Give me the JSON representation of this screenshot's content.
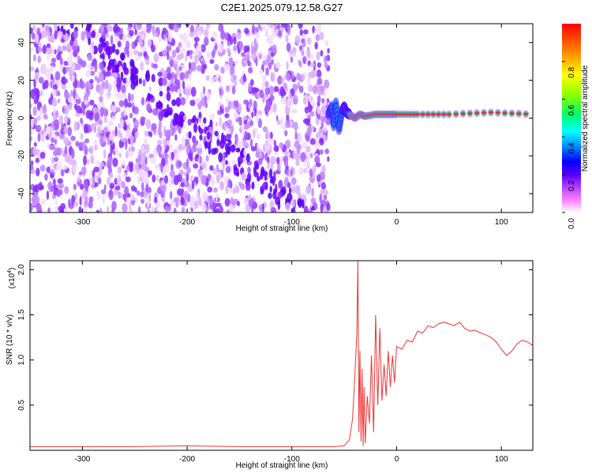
{
  "title": "C2E1.2025.079.12.58.G27",
  "chart_data": [
    {
      "type": "heatmap",
      "xlabel": "Height of straight line (km)",
      "ylabel": "Frequency (Hz)",
      "xlim": [
        -350,
        130
      ],
      "ylim": [
        -50,
        50
      ],
      "xticks": [
        -300,
        -200,
        -100,
        0,
        100
      ],
      "yticks": [
        -40,
        -20,
        0,
        20,
        40
      ],
      "noise_region_x": [
        -350,
        -65
      ],
      "signal_track": [
        [
          -65,
          2
        ],
        [
          -62,
          6
        ],
        [
          -60,
          -4
        ],
        [
          -58,
          8
        ],
        [
          -55,
          -6
        ],
        [
          -52,
          4
        ],
        [
          -50,
          6
        ],
        [
          -48,
          3
        ],
        [
          -45,
          2
        ],
        [
          -40,
          0
        ],
        [
          -35,
          2
        ],
        [
          -30,
          1
        ],
        [
          -20,
          2
        ],
        [
          -10,
          2
        ],
        [
          0,
          2
        ],
        [
          20,
          2
        ],
        [
          50,
          2
        ],
        [
          90,
          3
        ],
        [
          130,
          2
        ]
      ],
      "colorbar": {
        "label": "Normalized spectral amplitude",
        "range": [
          0,
          1
        ],
        "ticks": [
          "0.0",
          "0.2",
          "0.4",
          "0.6",
          "0.8"
        ]
      },
      "colors": [
        "#ffffff",
        "#ff66ff",
        "#aa44ff",
        "#3300ff",
        "#0000ff",
        "#0088ff",
        "#00ffff",
        "#00ff44",
        "#88ff00",
        "#ffff00",
        "#ff8800",
        "#ff0000"
      ]
    },
    {
      "type": "line",
      "xlabel": "Height of straight line (km)",
      "ylabel": "SNR (10 * v/v)",
      "scale_label": "(x10",
      "scale_exp": "4",
      "scale_close": ")",
      "xlim": [
        -350,
        130
      ],
      "ylim": [
        0,
        2.1
      ],
      "xticks": [
        -300,
        -200,
        -100,
        0,
        100
      ],
      "yticks": [
        "0.5",
        "1.0",
        "1.5",
        "2.0"
      ],
      "series": [
        {
          "color": "#ee3333",
          "x": [
            -350,
            -300,
            -250,
            -200,
            -150,
            -100,
            -60,
            -50,
            -45,
            -42,
            -40,
            -38,
            -37,
            -36,
            -35,
            -34,
            -33,
            -32,
            -31,
            -30,
            -28,
            -26,
            -24,
            -22,
            -20,
            -18,
            -16,
            -14,
            -12,
            -10,
            -8,
            -6,
            -4,
            -2,
            0,
            5,
            10,
            15,
            20,
            25,
            30,
            35,
            40,
            45,
            50,
            55,
            60,
            65,
            70,
            75,
            80,
            85,
            90,
            95,
            100,
            105,
            110,
            115,
            120,
            125,
            130
          ],
          "y": [
            0.04,
            0.04,
            0.04,
            0.05,
            0.04,
            0.04,
            0.04,
            0.05,
            0.12,
            0.35,
            0.8,
            1.3,
            2.1,
            0.2,
            1.1,
            0.1,
            0.9,
            0.05,
            0.7,
            0.08,
            0.6,
            0.3,
            1.05,
            0.2,
            1.5,
            0.5,
            1.35,
            0.55,
            0.95,
            0.6,
            1.1,
            0.7,
            1.05,
            0.75,
            1.15,
            1.12,
            1.22,
            1.2,
            1.32,
            1.3,
            1.38,
            1.36,
            1.4,
            1.42,
            1.4,
            1.38,
            1.42,
            1.35,
            1.32,
            1.33,
            1.3,
            1.28,
            1.25,
            1.2,
            1.12,
            1.05,
            1.1,
            1.18,
            1.22,
            1.2,
            1.16
          ]
        }
      ]
    }
  ]
}
